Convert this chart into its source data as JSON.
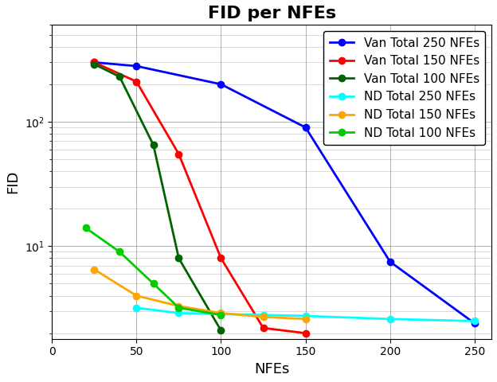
{
  "title": "FID per NFEs",
  "xlabel": "NFEs",
  "ylabel": "FID",
  "series": [
    {
      "label": "Van Total 250 NFEs",
      "color": "#0000ff",
      "x": [
        25,
        50,
        100,
        150,
        200,
        250
      ],
      "y": [
        300,
        280,
        200,
        90,
        7.5,
        2.4
      ]
    },
    {
      "label": "Van Total 150 NFEs",
      "color": "#ff0000",
      "x": [
        25,
        50,
        75,
        100,
        125,
        150
      ],
      "y": [
        300,
        210,
        55,
        8.0,
        2.2,
        2.0
      ]
    },
    {
      "label": "Van Total 100 NFEs",
      "color": "#006400",
      "x": [
        25,
        40,
        60,
        75,
        100
      ],
      "y": [
        290,
        230,
        65,
        8.0,
        2.1
      ]
    },
    {
      "label": "ND Total 250 NFEs",
      "color": "#00ffff",
      "x": [
        50,
        75,
        100,
        125,
        150,
        200,
        250
      ],
      "y": [
        3.2,
        2.9,
        2.85,
        2.8,
        2.75,
        2.6,
        2.5
      ]
    },
    {
      "label": "ND Total 150 NFEs",
      "color": "#ffa500",
      "x": [
        25,
        50,
        75,
        100,
        125,
        150
      ],
      "y": [
        6.5,
        4.0,
        3.3,
        2.9,
        2.7,
        2.6
      ]
    },
    {
      "label": "ND Total 100 NFEs",
      "color": "#00cc00",
      "x": [
        20,
        40,
        60,
        75,
        100
      ],
      "y": [
        14.0,
        9.0,
        5.0,
        3.2,
        2.8
      ]
    }
  ],
  "xlim": [
    0,
    260
  ],
  "ylim_log": [
    1.8,
    600
  ],
  "xticks": [
    0,
    50,
    100,
    150,
    200,
    250
  ],
  "background_color": "#ffffff",
  "title_fontsize": 16,
  "axis_fontsize": 13,
  "legend_fontsize": 11,
  "linewidth": 2.0,
  "markersize": 6
}
